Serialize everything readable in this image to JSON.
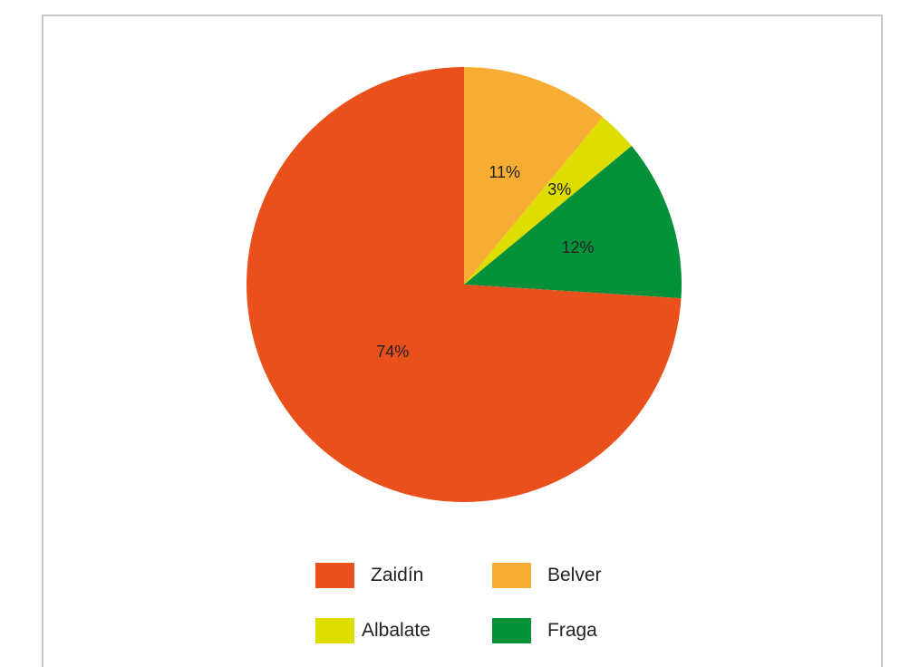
{
  "chart_data": {
    "type": "pie",
    "title": "",
    "start_angle_deg": 0,
    "direction": "clockwise",
    "legend_position": "bottom",
    "slices": [
      {
        "name": "Belver",
        "value": 11,
        "label": "11%",
        "color": "#F7AD33"
      },
      {
        "name": "Albalate",
        "value": 3,
        "label": "3%",
        "color": "#DDDD00"
      },
      {
        "name": "Fraga",
        "value": 12,
        "label": "12%",
        "color": "#04913A"
      },
      {
        "name": "Zaidín",
        "value": 74,
        "label": "74%",
        "color": "#E9501B"
      }
    ],
    "legend": [
      {
        "name": "Zaidín",
        "color": "#E9501B"
      },
      {
        "name": "Belver",
        "color": "#F7AD33"
      },
      {
        "name": "Albalate",
        "color": "#DDDD00"
      },
      {
        "name": "Fraga",
        "color": "#04913A"
      }
    ]
  }
}
